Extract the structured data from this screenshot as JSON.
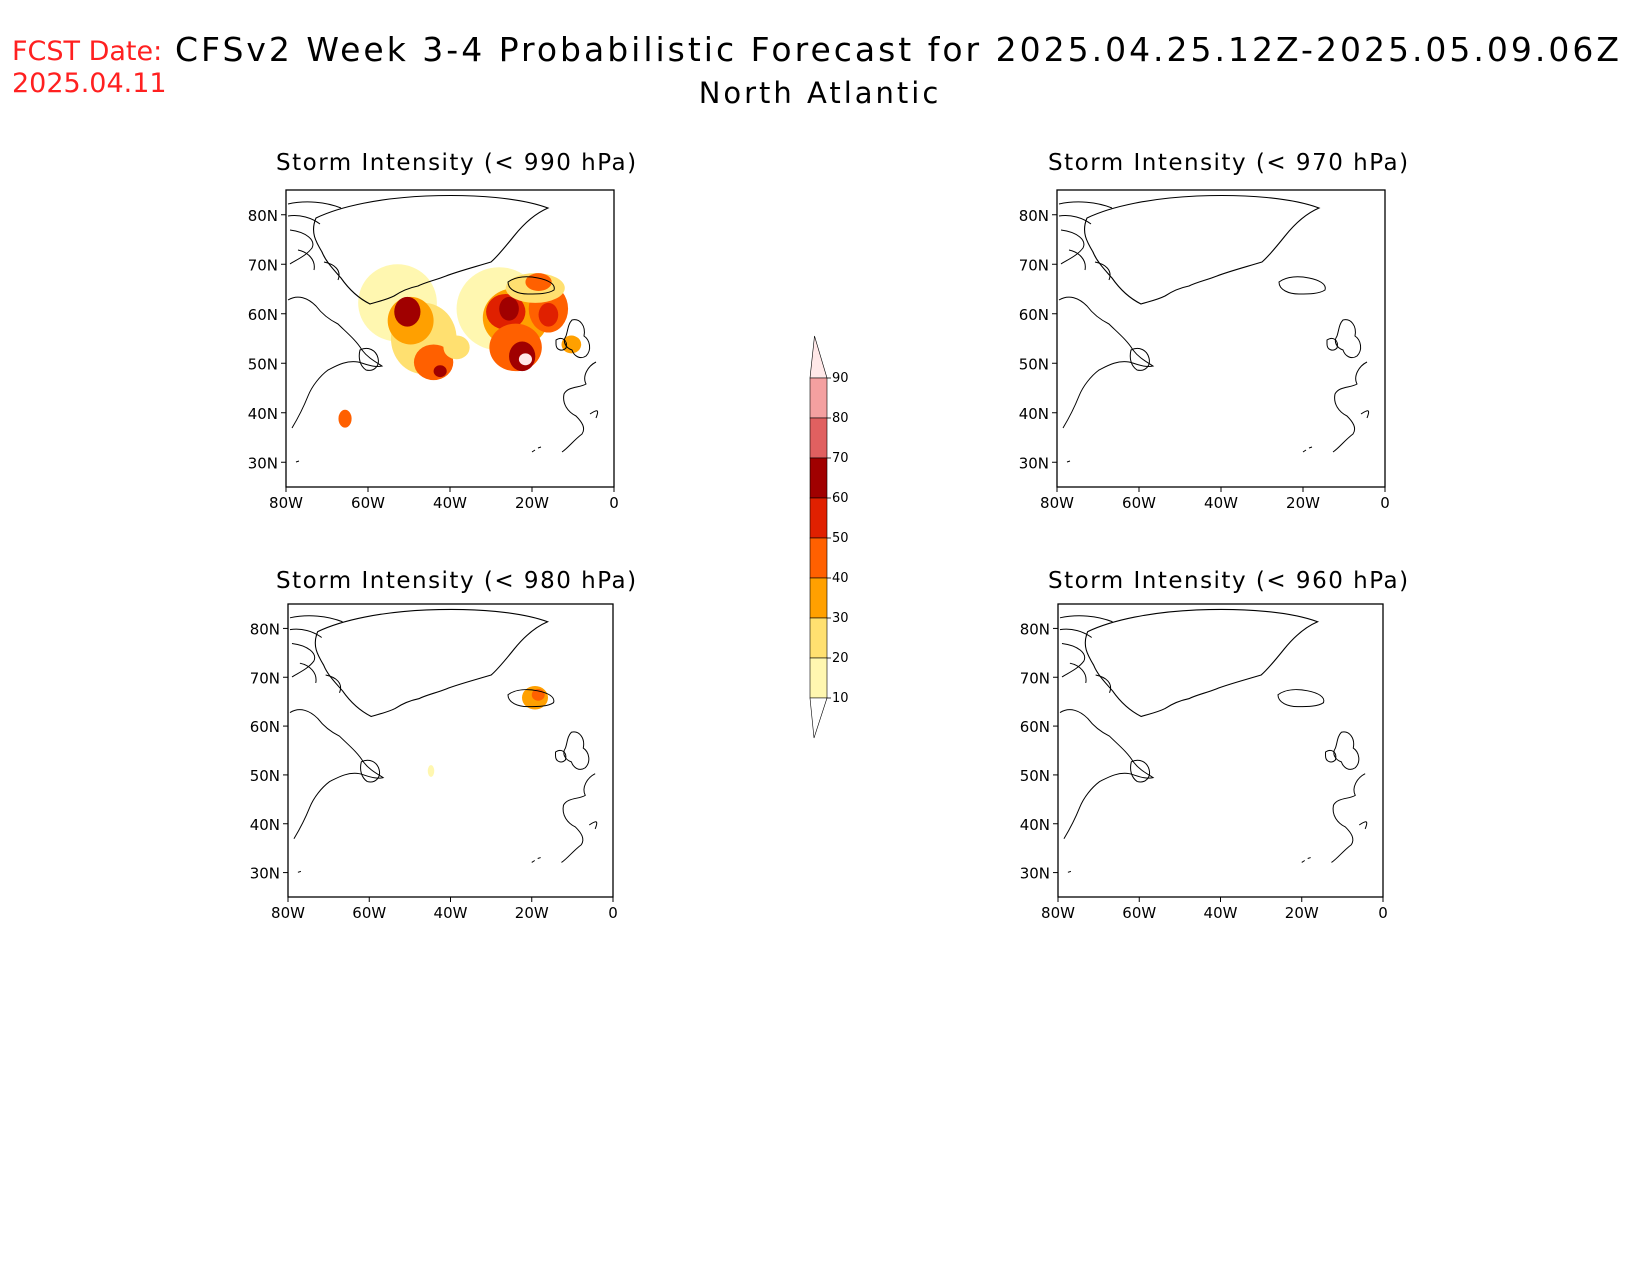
{
  "header": {
    "fcst_label": "FCST Date:",
    "fcst_date": "2025.04.11",
    "title": "CFSv2 Week 3-4 Probabilistic Forecast for 2025.04.25.12Z-2025.05.09.06Z",
    "region": "North Atlantic"
  },
  "panels": [
    {
      "id": "p990",
      "title": "Storm Intensity (< 990 hPa)"
    },
    {
      "id": "p970",
      "title": "Storm Intensity (< 970 hPa)"
    },
    {
      "id": "p980",
      "title": "Storm Intensity (< 980 hPa)"
    },
    {
      "id": "p960",
      "title": "Storm Intensity (< 960 hPa)"
    }
  ],
  "axes": {
    "lon_labels": [
      "80W",
      "60W",
      "40W",
      "20W",
      "0"
    ],
    "lat_labels": [
      "80N",
      "70N",
      "60N",
      "50N",
      "40N",
      "30N"
    ],
    "lon_range": [
      -80,
      0
    ],
    "lat_range": [
      25,
      85
    ]
  },
  "colorbar": {
    "levels": [
      "10",
      "20",
      "30",
      "40",
      "50",
      "60",
      "70",
      "80",
      "90"
    ],
    "colors": [
      "#fff7b0",
      "#ffe070",
      "#ffa000",
      "#ff6000",
      "#e02000",
      "#a00000",
      "#e06060",
      "#f4a0a0",
      "#ffe8e8"
    ]
  }
}
